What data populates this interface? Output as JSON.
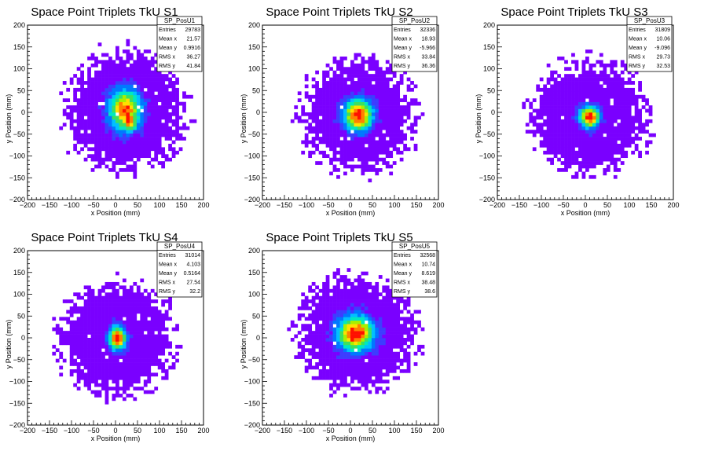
{
  "chart_data": [
    {
      "type": "heatmap",
      "title": "Space Point Triplets TkU S1",
      "xlabel": "x Position (mm)",
      "ylabel": "y Position (mm)",
      "xlim": [
        -200,
        200
      ],
      "ylim": [
        -200,
        200
      ],
      "xticks": [
        "−200",
        "−150",
        "−100",
        "−50",
        "0",
        "50",
        "100",
        "150",
        "200"
      ],
      "yticks": [
        "−200",
        "−150",
        "−100",
        "−50",
        "0",
        "50",
        "100",
        "150",
        "200"
      ],
      "stats": {
        "name": "SP_PosU1",
        "rows": [
          {
            "label": "Entries",
            "value": "29783"
          },
          {
            "label": "Mean x",
            "value": "21.57"
          },
          {
            "label": "Mean y",
            "value": "0.9916"
          },
          {
            "label": "RMS x",
            "value": "36.27"
          },
          {
            "label": "RMS y",
            "value": "41.84"
          }
        ]
      },
      "distribution": {
        "center": [
          22,
          5
        ],
        "core_radius": [
          38,
          50
        ],
        "halo_radius": [
          105,
          105
        ],
        "double_peak": true
      }
    },
    {
      "type": "heatmap",
      "title": "Space Point Triplets TkU S2",
      "xlabel": "x Position (mm)",
      "ylabel": "y Position (mm)",
      "xlim": [
        -200,
        200
      ],
      "ylim": [
        -200,
        200
      ],
      "xticks": [
        "−200",
        "−150",
        "−100",
        "−50",
        "0",
        "50",
        "100",
        "150",
        "200"
      ],
      "yticks": [
        "−200",
        "−150",
        "−100",
        "−50",
        "0",
        "50",
        "100",
        "150",
        "200"
      ],
      "stats": {
        "name": "SP_PosU2",
        "rows": [
          {
            "label": "Entries",
            "value": "32336"
          },
          {
            "label": "Mean x",
            "value": "18.93"
          },
          {
            "label": "Mean y",
            "value": "-5.966"
          },
          {
            "label": "RMS x",
            "value": "33.84"
          },
          {
            "label": "RMS y",
            "value": "36.36"
          }
        ]
      },
      "distribution": {
        "center": [
          18,
          -6
        ],
        "core_radius": [
          34,
          38
        ],
        "halo_radius": [
          100,
          100
        ],
        "double_peak": false
      }
    },
    {
      "type": "heatmap",
      "title": "Space Point Triplets TkU S3",
      "xlabel": "x Position (mm)",
      "ylabel": "y Position (mm)",
      "xlim": [
        -200,
        200
      ],
      "ylim": [
        -200,
        200
      ],
      "xticks": [
        "−200",
        "−150",
        "−100",
        "−50",
        "0",
        "50",
        "100",
        "150",
        "200"
      ],
      "yticks": [
        "−200",
        "−150",
        "−100",
        "−50",
        "0",
        "50",
        "100",
        "150",
        "200"
      ],
      "stats": {
        "name": "SP_PosU3",
        "rows": [
          {
            "label": "Entries",
            "value": "31809"
          },
          {
            "label": "Mean x",
            "value": "10.06"
          },
          {
            "label": "Mean y",
            "value": "-9.096"
          },
          {
            "label": "RMS x",
            "value": "29.73"
          },
          {
            "label": "RMS y",
            "value": "32.53"
          }
        ]
      },
      "distribution": {
        "center": [
          10,
          -10
        ],
        "core_radius": [
          24,
          26
        ],
        "halo_radius": [
          100,
          100
        ],
        "double_peak": false
      }
    },
    {
      "type": "heatmap",
      "title": "Space Point Triplets TkU S4",
      "xlabel": "x Position (mm)",
      "ylabel": "y Position (mm)",
      "xlim": [
        -200,
        200
      ],
      "ylim": [
        -200,
        200
      ],
      "xticks": [
        "−200",
        "−150",
        "−100",
        "−50",
        "0",
        "50",
        "100",
        "150",
        "200"
      ],
      "yticks": [
        "−200",
        "−150",
        "−100",
        "−50",
        "0",
        "50",
        "100",
        "150",
        "200"
      ],
      "stats": {
        "name": "SP_PosU4",
        "rows": [
          {
            "label": "Entries",
            "value": "31014"
          },
          {
            "label": "Mean x",
            "value": "4.103"
          },
          {
            "label": "Mean y",
            "value": "0.5164"
          },
          {
            "label": "RMS x",
            "value": "27.54"
          },
          {
            "label": "RMS y",
            "value": "32.2"
          }
        ]
      },
      "distribution": {
        "center": [
          4,
          0
        ],
        "core_radius": [
          20,
          28
        ],
        "halo_radius": [
          100,
          100
        ],
        "double_peak": false
      }
    },
    {
      "type": "heatmap",
      "title": "Space Point Triplets TkU S5",
      "xlabel": "x Position (mm)",
      "ylabel": "y Position (mm)",
      "xlim": [
        -200,
        200
      ],
      "ylim": [
        -200,
        200
      ],
      "xticks": [
        "−200",
        "−150",
        "−100",
        "−50",
        "0",
        "50",
        "100",
        "150",
        "200"
      ],
      "yticks": [
        "−200",
        "−150",
        "−100",
        "−50",
        "0",
        "50",
        "100",
        "150",
        "200"
      ],
      "stats": {
        "name": "SP_PosU5",
        "rows": [
          {
            "label": "Entries",
            "value": "32568"
          },
          {
            "label": "Mean x",
            "value": "10.74"
          },
          {
            "label": "Mean y",
            "value": "8.619"
          },
          {
            "label": "RMS x",
            "value": "38.48"
          },
          {
            "label": "RMS y",
            "value": "38.6"
          }
        ]
      },
      "distribution": {
        "center": [
          12,
          10
        ],
        "core_radius": [
          44,
          42
        ],
        "halo_radius": [
          105,
          100
        ],
        "double_peak": false
      }
    }
  ],
  "colors": {
    "palette": [
      "#7a00ff",
      "#3d3dff",
      "#0078ff",
      "#00c0ff",
      "#00e8c0",
      "#3ce060",
      "#a8f000",
      "#ffe000",
      "#ff8000",
      "#ff1000"
    ],
    "frame": "#000000",
    "background": "#ffffff"
  }
}
